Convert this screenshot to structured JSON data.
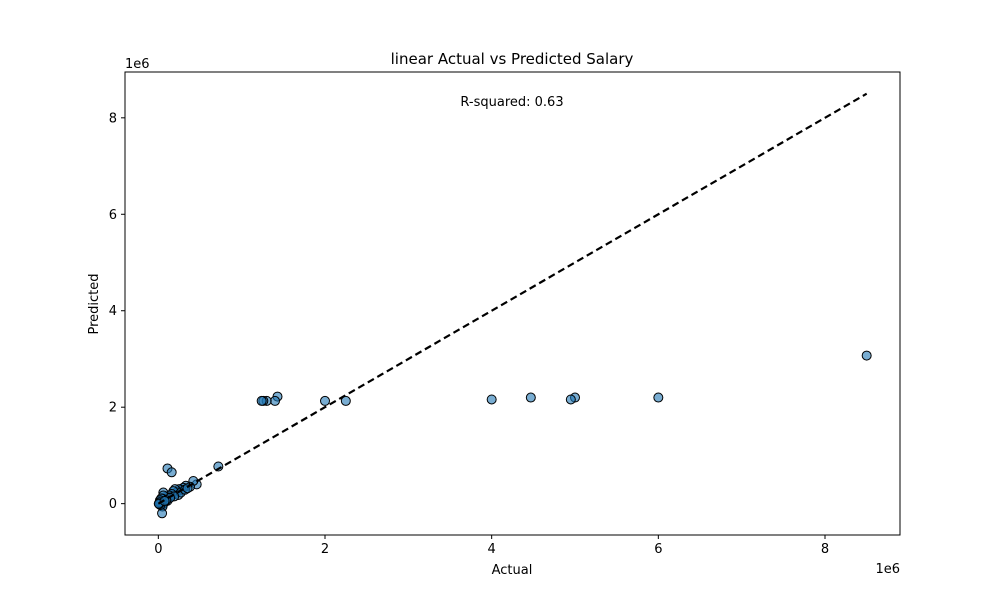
{
  "chart_data": {
    "type": "scatter",
    "title": "linear Actual vs Predicted Salary",
    "xlabel": "Actual",
    "ylabel": "Predicted",
    "x_offset_label": "1e6",
    "y_offset_label": "1e6",
    "xlim": [
      -400000,
      8900000
    ],
    "ylim": [
      -650000,
      8950000
    ],
    "x_ticks": [
      0,
      2000000,
      4000000,
      6000000,
      8000000
    ],
    "x_tick_labels": [
      "0",
      "2",
      "4",
      "6",
      "8"
    ],
    "y_ticks": [
      0,
      2000000,
      4000000,
      6000000,
      8000000
    ],
    "y_tick_labels": [
      "0",
      "2",
      "4",
      "6",
      "8"
    ],
    "grid": false,
    "annotation": "R-squared: 0.63",
    "reference_line": {
      "x": [
        0,
        8500000
      ],
      "y": [
        0,
        8500000
      ],
      "style": "dashed",
      "color": "#000000"
    },
    "point_color": "#1f77b4",
    "point_edge_color": "#000000",
    "points": [
      {
        "x": 8500000,
        "y": 3070000
      },
      {
        "x": 6000000,
        "y": 2200000
      },
      {
        "x": 5000000,
        "y": 2200000
      },
      {
        "x": 4950000,
        "y": 2160000
      },
      {
        "x": 4470000,
        "y": 2200000
      },
      {
        "x": 4000000,
        "y": 2160000
      },
      {
        "x": 2250000,
        "y": 2130000
      },
      {
        "x": 2000000,
        "y": 2130000
      },
      {
        "x": 1430000,
        "y": 2220000
      },
      {
        "x": 1400000,
        "y": 2130000
      },
      {
        "x": 1300000,
        "y": 2130000
      },
      {
        "x": 1260000,
        "y": 2130000
      },
      {
        "x": 1240000,
        "y": 2130000
      },
      {
        "x": 720000,
        "y": 770000
      },
      {
        "x": 110000,
        "y": 730000
      },
      {
        "x": 160000,
        "y": 650000
      },
      {
        "x": 460000,
        "y": 400000
      },
      {
        "x": 420000,
        "y": 470000
      },
      {
        "x": 380000,
        "y": 350000
      },
      {
        "x": 330000,
        "y": 370000
      },
      {
        "x": 300000,
        "y": 330000
      },
      {
        "x": 280000,
        "y": 280000
      },
      {
        "x": 250000,
        "y": 300000
      },
      {
        "x": 230000,
        "y": 250000
      },
      {
        "x": 210000,
        "y": 220000
      },
      {
        "x": 200000,
        "y": 300000
      },
      {
        "x": 180000,
        "y": 260000
      },
      {
        "x": 160000,
        "y": 200000
      },
      {
        "x": 150000,
        "y": 140000
      },
      {
        "x": 130000,
        "y": 170000
      },
      {
        "x": 120000,
        "y": 110000
      },
      {
        "x": 110000,
        "y": 60000
      },
      {
        "x": 100000,
        "y": 90000
      },
      {
        "x": 90000,
        "y": 140000
      },
      {
        "x": 80000,
        "y": 40000
      },
      {
        "x": 70000,
        "y": 20000
      },
      {
        "x": 60000,
        "y": 230000
      },
      {
        "x": 60000,
        "y": 170000
      },
      {
        "x": 55000,
        "y": 100000
      },
      {
        "x": 50000,
        "y": -20000
      },
      {
        "x": 50000,
        "y": -60000
      },
      {
        "x": 45000,
        "y": -200000
      },
      {
        "x": 40000,
        "y": 50000
      },
      {
        "x": 35000,
        "y": 110000
      },
      {
        "x": 30000,
        "y": 20000
      },
      {
        "x": 25000,
        "y": -30000
      },
      {
        "x": 20000,
        "y": 70000
      },
      {
        "x": 15000,
        "y": 30000
      },
      {
        "x": 10000,
        "y": -10000
      },
      {
        "x": 5000,
        "y": 0
      },
      {
        "x": 240000,
        "y": 180000
      },
      {
        "x": 270000,
        "y": 230000
      },
      {
        "x": 320000,
        "y": 290000
      },
      {
        "x": 350000,
        "y": 320000
      },
      {
        "x": 190000,
        "y": 150000
      },
      {
        "x": 140000,
        "y": 120000
      },
      {
        "x": 95000,
        "y": 70000
      },
      {
        "x": 75000,
        "y": 55000
      }
    ]
  }
}
